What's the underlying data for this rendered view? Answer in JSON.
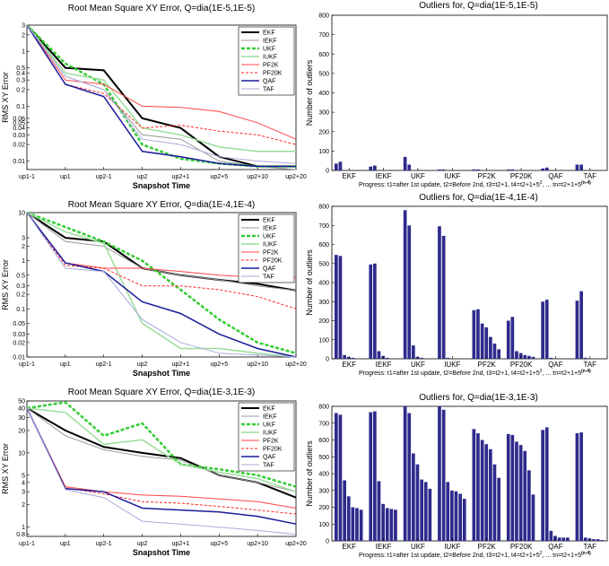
{
  "chart_data": [
    {
      "type": "line",
      "id": "rms1",
      "title": "Root Mean Square XY Error, Q=dia(1E-5,1E-5)",
      "xlabel": "Snapshot Time",
      "ylabel": "RMS XY Error",
      "yscale": "log",
      "ylim": [
        0.007,
        3
      ],
      "categories": [
        "up1-1",
        "up1",
        "up2-1",
        "up2",
        "up2+1",
        "up2+5",
        "up2+10",
        "up2+20"
      ],
      "yticks": [
        {
          "v": 3,
          "t": "3"
        },
        {
          "v": 2,
          "t": "2"
        },
        {
          "v": 1,
          "t": "1"
        },
        {
          "v": 0.5,
          "t": "0.5"
        },
        {
          "v": 0.4,
          "t": "0.4"
        },
        {
          "v": 0.3,
          "t": "0.3"
        },
        {
          "v": 0.2,
          "t": "0.2"
        },
        {
          "v": 0.1,
          "t": "0.1"
        },
        {
          "v": 0.06,
          "t": "0.06"
        },
        {
          "v": 0.05,
          "t": "0.05"
        },
        {
          "v": 0.04,
          "t": "0.04"
        },
        {
          "v": 0.03,
          "t": "0.03"
        },
        {
          "v": 0.02,
          "t": "0.02"
        },
        {
          "v": 0.01,
          "t": "0.01"
        }
      ],
      "series": [
        {
          "name": "EKF",
          "values": [
            3,
            0.5,
            0.45,
            0.06,
            0.04,
            0.012,
            0.008,
            0.008
          ]
        },
        {
          "name": "IEKF",
          "values": [
            3,
            0.35,
            0.2,
            0.03,
            0.025,
            0.01,
            0.008,
            0.007
          ]
        },
        {
          "name": "UKF",
          "values": [
            3,
            0.6,
            0.25,
            0.02,
            0.011,
            0.009,
            0.008,
            0.008
          ]
        },
        {
          "name": "IUKF",
          "values": [
            3,
            0.4,
            0.3,
            0.04,
            0.03,
            0.018,
            0.015,
            0.015
          ]
        },
        {
          "name": "PF2K",
          "values": [
            3,
            0.3,
            0.25,
            0.1,
            0.095,
            0.08,
            0.05,
            0.025
          ]
        },
        {
          "name": "PF20K",
          "values": [
            3,
            0.25,
            0.17,
            0.04,
            0.045,
            0.035,
            0.03,
            0.02
          ]
        },
        {
          "name": "QAF",
          "values": [
            3,
            0.25,
            0.15,
            0.015,
            0.012,
            0.009,
            0.008,
            0.008
          ]
        },
        {
          "name": "TAF",
          "values": [
            3,
            0.35,
            0.2,
            0.025,
            0.02,
            0.012,
            0.01,
            0.009
          ]
        }
      ]
    },
    {
      "type": "line",
      "id": "rms2",
      "title": "Root Mean Square XY Error, Q=dia(1E-4,1E-4)",
      "xlabel": "Snapshot Time",
      "ylabel": "RMS XY Error",
      "yscale": "log",
      "ylim": [
        0.01,
        10
      ],
      "categories": [
        "up1-1",
        "up1",
        "up2-1",
        "up2",
        "up2+1",
        "up2+5",
        "up2+10",
        "up2+20"
      ],
      "yticks": [
        {
          "v": 10,
          "t": "10"
        },
        {
          "v": 3,
          "t": "3"
        },
        {
          "v": 2,
          "t": "2"
        },
        {
          "v": 1,
          "t": "1"
        },
        {
          "v": 0.5,
          "t": "0.5"
        },
        {
          "v": 0.3,
          "t": "0.3"
        },
        {
          "v": 0.2,
          "t": "0.2"
        },
        {
          "v": 0.1,
          "t": "0.1"
        },
        {
          "v": 0.05,
          "t": "0.05"
        },
        {
          "v": 0.03,
          "t": "0.03"
        },
        {
          "v": 0.02,
          "t": "0.02"
        },
        {
          "v": 0.01,
          "t": "0.01"
        }
      ],
      "series": [
        {
          "name": "EKF",
          "values": [
            10,
            3,
            2.5,
            0.7,
            0.5,
            0.4,
            0.33,
            0.24
          ]
        },
        {
          "name": "IEKF",
          "values": [
            10,
            2.5,
            2.0,
            0.7,
            0.5,
            0.4,
            0.3,
            0.24
          ]
        },
        {
          "name": "UKF",
          "values": [
            10,
            5,
            2.5,
            1,
            0.25,
            0.06,
            0.02,
            0.012
          ]
        },
        {
          "name": "IUKF",
          "values": [
            10,
            4,
            2.3,
            0.05,
            0.015,
            0.015,
            0.012,
            0.01
          ]
        },
        {
          "name": "PF2K",
          "values": [
            10,
            0.9,
            0.7,
            0.7,
            0.6,
            0.5,
            0.45,
            0.45
          ]
        },
        {
          "name": "PF20K",
          "values": [
            10,
            0.8,
            0.7,
            0.3,
            0.3,
            0.25,
            0.18,
            0.1
          ]
        },
        {
          "name": "QAF",
          "values": [
            10,
            0.9,
            0.6,
            0.14,
            0.08,
            0.03,
            0.015,
            0.01
          ]
        },
        {
          "name": "TAF",
          "values": [
            10,
            0.7,
            0.6,
            0.06,
            0.02,
            0.012,
            0.011,
            0.01
          ]
        }
      ]
    },
    {
      "type": "line",
      "id": "rms3",
      "title": "Root Mean Square XY Error, Q=dia(1E-3,1E-3)",
      "xlabel": "Snapshot Time",
      "ylabel": "RMS XY Error",
      "yscale": "log",
      "ylim": [
        0.75,
        50
      ],
      "categories": [
        "up1-1",
        "up1",
        "up2-1",
        "up2",
        "up2+1",
        "up2+5",
        "up2+10",
        "up2+20"
      ],
      "yticks": [
        {
          "v": 50,
          "t": "50"
        },
        {
          "v": 40,
          "t": "40"
        },
        {
          "v": 30,
          "t": "30"
        },
        {
          "v": 20,
          "t": "20"
        },
        {
          "v": 10,
          "t": "10"
        },
        {
          "v": 5,
          "t": "5"
        },
        {
          "v": 4,
          "t": "4"
        },
        {
          "v": 3,
          "t": "3"
        },
        {
          "v": 2,
          "t": "2"
        },
        {
          "v": 1,
          "t": "1"
        },
        {
          "v": 0.8,
          "t": "0.8"
        }
      ],
      "series": [
        {
          "name": "EKF",
          "values": [
            40,
            20,
            12,
            10,
            8.5,
            5,
            4,
            2.5
          ]
        },
        {
          "name": "IEKF",
          "values": [
            40,
            17,
            11,
            9,
            8,
            5,
            4,
            3
          ]
        },
        {
          "name": "UKF",
          "values": [
            40,
            48,
            17,
            25,
            7,
            6,
            5,
            3.5
          ]
        },
        {
          "name": "IUKF",
          "values": [
            40,
            35,
            13,
            15,
            7,
            5.5,
            4.5,
            3
          ]
        },
        {
          "name": "PF2K",
          "values": [
            40,
            3.5,
            3,
            2.7,
            2.6,
            2.4,
            2.2,
            1.8
          ]
        },
        {
          "name": "PF20K",
          "values": [
            40,
            3.4,
            2.8,
            2.2,
            2.1,
            1.9,
            1.7,
            1.5
          ]
        },
        {
          "name": "QAF",
          "values": [
            40,
            3.3,
            3,
            1.8,
            1.7,
            1.6,
            1.4,
            1.1
          ]
        },
        {
          "name": "TAF",
          "values": [
            40,
            3.2,
            2.5,
            1.2,
            1.1,
            1.0,
            0.9,
            0.8
          ]
        }
      ]
    },
    {
      "type": "bar",
      "id": "out1",
      "title": "Outliers for, Q=dia(1E-5,1E-5)",
      "ylabel": "Number of outliers",
      "ylim": [
        0,
        800
      ],
      "yticks": [
        0,
        100,
        200,
        300,
        400,
        500,
        600,
        700,
        800
      ],
      "categories": [
        "EKF",
        "IEKF",
        "UKF",
        "IUKF",
        "PF2K",
        "PF20K",
        "QAF",
        "TAF"
      ],
      "values": [
        [
          35,
          45,
          0,
          0,
          0,
          0,
          0
        ],
        [
          20,
          25,
          0,
          0,
          0,
          0,
          0
        ],
        [
          70,
          30,
          0,
          0,
          0,
          0,
          0
        ],
        [
          5,
          5,
          0,
          0,
          0,
          0,
          0
        ],
        [
          5,
          5,
          0,
          0,
          0,
          0,
          0
        ],
        [
          5,
          5,
          0,
          0,
          0,
          0,
          0
        ],
        [
          10,
          15,
          0,
          0,
          0,
          0,
          0
        ],
        [
          30,
          30,
          0,
          0,
          0,
          0,
          0
        ]
      ],
      "progress": "Progress: t1=after 1st update, t2=Before 2nd, t3=t2+1, t4=t2+1+5",
      "progress_sup1": "2",
      "progress_tail": ", ... tn=t2+1+5",
      "progress_sup2": "(n-4)"
    },
    {
      "type": "bar",
      "id": "out2",
      "title": "Outliers for, Q=dia(1E-4,1E-4)",
      "ylabel": "Number of outliers",
      "ylim": [
        0,
        800
      ],
      "yticks": [
        0,
        100,
        200,
        300,
        400,
        500,
        600,
        700,
        800
      ],
      "categories": [
        "EKF",
        "IEKF",
        "UKF",
        "IUKF",
        "PF2K",
        "PF20K",
        "QAF",
        "TAF"
      ],
      "values": [
        [
          545,
          540,
          20,
          10,
          5,
          0,
          0
        ],
        [
          495,
          500,
          40,
          15,
          5,
          0,
          0
        ],
        [
          780,
          700,
          70,
          10,
          5,
          0,
          0
        ],
        [
          695,
          645,
          5,
          0,
          0,
          0,
          0
        ],
        [
          255,
          260,
          185,
          165,
          115,
          80,
          50
        ],
        [
          200,
          220,
          40,
          30,
          20,
          15,
          10
        ],
        [
          300,
          310,
          5,
          0,
          0,
          0,
          0
        ],
        [
          305,
          355,
          5,
          0,
          0,
          0,
          0
        ]
      ],
      "progress": "Progress: t1=after 1st update, t2=Before 2nd, t3=t2+1, t4=t2+1+5",
      "progress_sup1": "2",
      "progress_tail": ", ... tn=t2+1+5",
      "progress_sup2": "(n-4)"
    },
    {
      "type": "bar",
      "id": "out3",
      "title": "Outliers for, Q=dia(1E-3,1E-3)",
      "ylabel": "Number of outliers",
      "ylim": [
        0,
        800
      ],
      "yticks": [
        0,
        100,
        200,
        300,
        400,
        500,
        600,
        700,
        800
      ],
      "categories": [
        "EKF",
        "IEKF",
        "UKF",
        "IUKF",
        "PF2K",
        "PF20K",
        "QAF",
        "TAF"
      ],
      "values": [
        [
          760,
          750,
          360,
          265,
          200,
          195,
          185
        ],
        [
          765,
          770,
          355,
          220,
          195,
          190,
          185
        ],
        [
          800,
          760,
          520,
          455,
          365,
          350,
          310
        ],
        [
          800,
          780,
          350,
          300,
          295,
          280,
          250
        ],
        [
          665,
          640,
          600,
          575,
          545,
          455,
          375
        ],
        [
          635,
          630,
          590,
          570,
          535,
          420,
          275
        ],
        [
          660,
          675,
          60,
          30,
          20,
          20,
          20
        ],
        [
          640,
          645,
          20,
          15,
          10,
          10,
          5
        ]
      ],
      "progress": "Progress: t1=after 1st update, t2=Before 2nd, t3=t2+1, t4=t2+1+5",
      "progress_sup1": "2",
      "progress_tail": ", ... tn=t2+1+5",
      "progress_sup2": "(n-4)"
    }
  ],
  "legend_styles": {
    "EKF": {
      "color": "#000000",
      "dash": "",
      "width": 2
    },
    "IEKF": {
      "color": "#999999",
      "dash": "",
      "width": 1
    },
    "UKF": {
      "color": "#33cc33",
      "dash": "4,2",
      "width": 2.5
    },
    "IUKF": {
      "color": "#99dd99",
      "dash": "",
      "width": 1.5
    },
    "PF2K": {
      "color": "#ff4444",
      "dash": "",
      "width": 1
    },
    "PF20K": {
      "color": "#ff2222",
      "dash": "3,2",
      "width": 1
    },
    "QAF": {
      "color": "#1a1a99",
      "dash": "",
      "width": 1.5
    },
    "TAF": {
      "color": "#aaaadd",
      "dash": "",
      "width": 1
    }
  },
  "bar_color": "#2e2a8c"
}
